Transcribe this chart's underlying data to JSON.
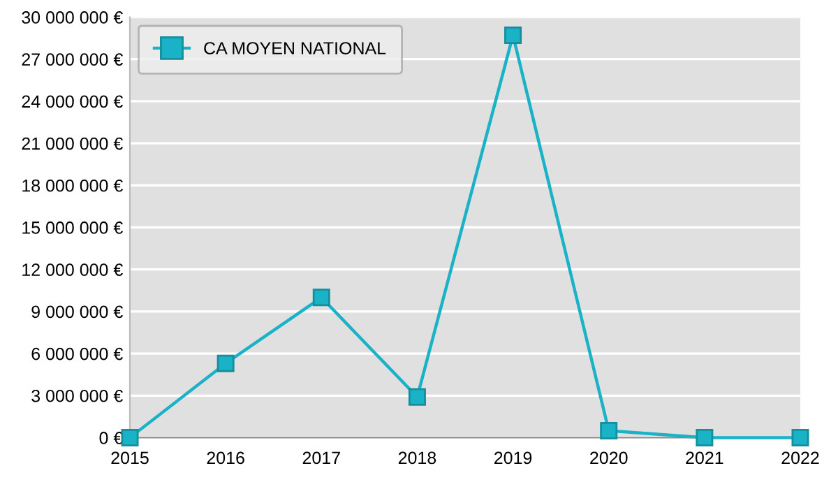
{
  "chart_data": {
    "type": "line",
    "x": [
      2015,
      2016,
      2017,
      2018,
      2019,
      2020,
      2021,
      2022
    ],
    "series": [
      {
        "name": "CA MOYEN NATIONAL",
        "color": "#1ab2c6",
        "values": [
          0,
          5300000,
          10000000,
          2900000,
          28700000,
          500000,
          0,
          0
        ]
      }
    ],
    "xlim": [
      2015,
      2022
    ],
    "xticks": [
      2015,
      2016,
      2017,
      2018,
      2019,
      2020,
      2021,
      2022
    ],
    "ylim": [
      0,
      30000000
    ],
    "yticks": [
      {
        "value": 0,
        "label": "0 €"
      },
      {
        "value": 3000000,
        "label": "3 000 000 €"
      },
      {
        "value": 6000000,
        "label": "6 000 000 €"
      },
      {
        "value": 9000000,
        "label": "9 000 000 €"
      },
      {
        "value": 12000000,
        "label": "12 000 000 €"
      },
      {
        "value": 15000000,
        "label": "15 000 000 €"
      },
      {
        "value": 18000000,
        "label": "18 000 000 €"
      },
      {
        "value": 21000000,
        "label": "21 000 000 €"
      },
      {
        "value": 24000000,
        "label": "24 000 000 €"
      },
      {
        "value": 27000000,
        "label": "27 000 000 €"
      },
      {
        "value": 30000000,
        "label": "30 000 000 €"
      }
    ],
    "grid": "y",
    "legend": "top left",
    "marker": "square",
    "line_style": "solid"
  }
}
